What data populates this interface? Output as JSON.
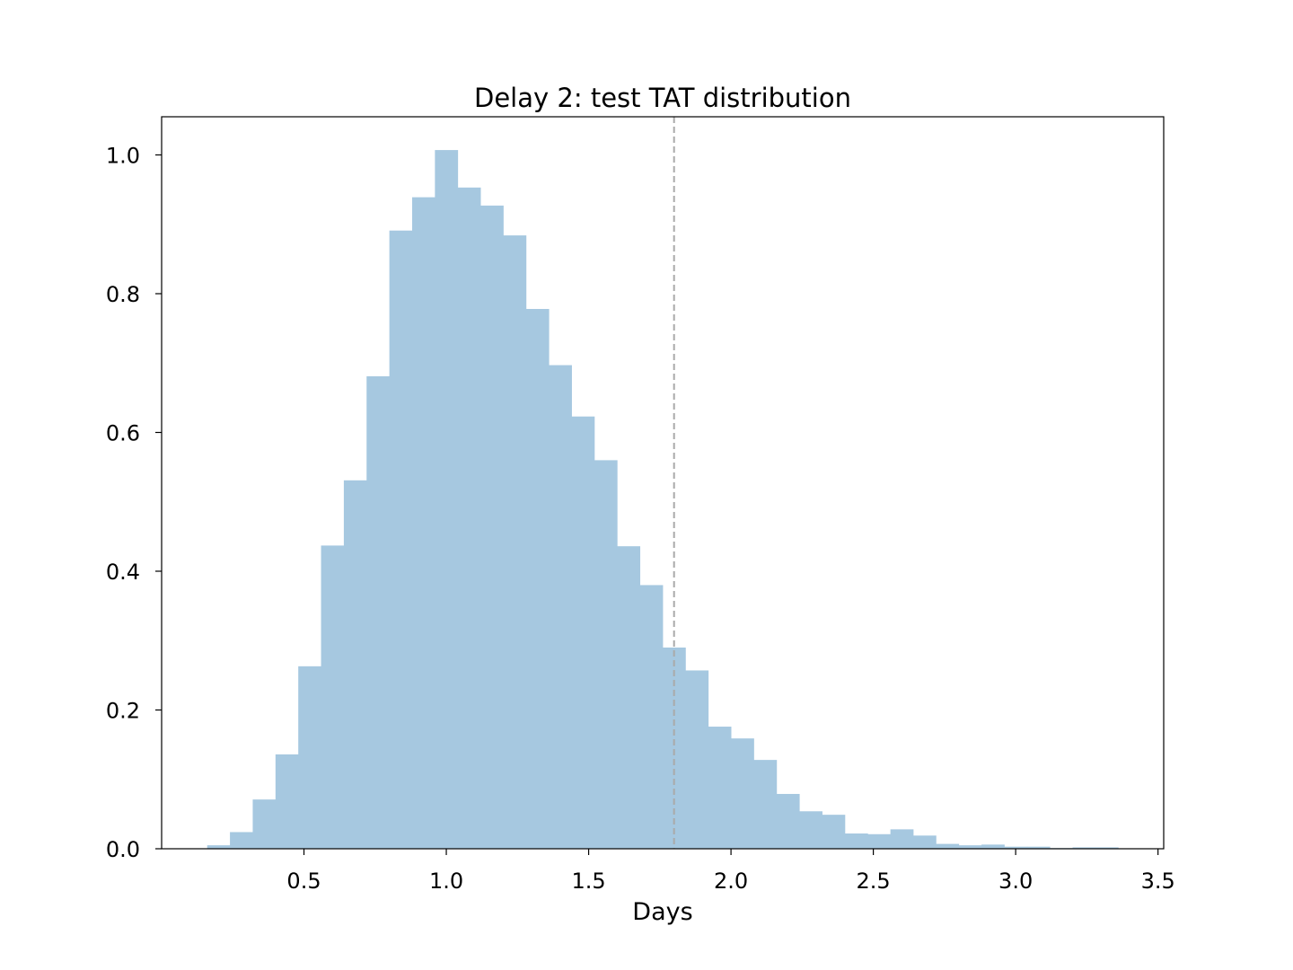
{
  "chart_data": {
    "type": "bar",
    "subtype": "histogram",
    "title": "Delay 2: test TAT distribution",
    "xlabel": "Days",
    "ylabel": "",
    "xlim": [
      0.0,
      3.52
    ],
    "ylim": [
      0.0,
      1.055
    ],
    "xticks": [
      0.5,
      1.0,
      1.5,
      2.0,
      2.5,
      3.0,
      3.5
    ],
    "xtick_labels": [
      "0.5",
      "1.0",
      "1.5",
      "2.0",
      "2.5",
      "3.0",
      "3.5"
    ],
    "yticks": [
      0.0,
      0.2,
      0.4,
      0.6,
      0.8,
      1.0
    ],
    "ytick_labels": [
      "0.0",
      "0.2",
      "0.4",
      "0.6",
      "0.8",
      "1.0"
    ],
    "grid": false,
    "bar_color": "#a6c8e0",
    "bins_start": 0.16,
    "bin_width": 0.08,
    "values": [
      0.005,
      0.024,
      0.071,
      0.136,
      0.263,
      0.437,
      0.531,
      0.681,
      0.891,
      0.939,
      1.007,
      0.953,
      0.927,
      0.884,
      0.778,
      0.697,
      0.623,
      0.56,
      0.436,
      0.38,
      0.29,
      0.257,
      0.176,
      0.159,
      0.128,
      0.079,
      0.054,
      0.049,
      0.022,
      0.021,
      0.028,
      0.019,
      0.007,
      0.005,
      0.006,
      0.003,
      0.003,
      0.001,
      0.002,
      0.002
    ],
    "reference_line": {
      "x": 1.8,
      "style": "dashed",
      "color": "#aaaaaa"
    }
  }
}
